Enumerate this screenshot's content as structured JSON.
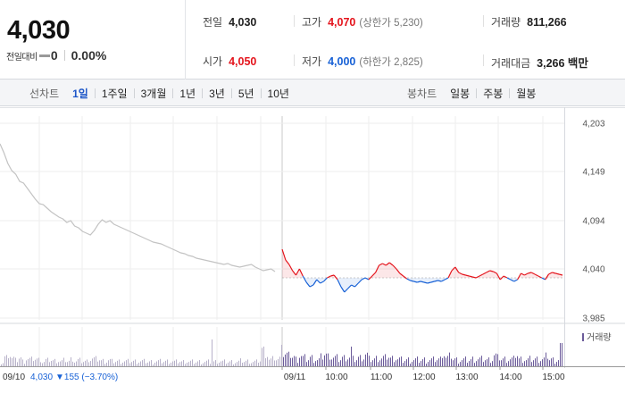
{
  "summary": {
    "current_price": "4,030",
    "change_label": "전일대비",
    "change_value": "0",
    "change_rate": "0.00%",
    "prev_close_label": "전일",
    "prev_close": "4,030",
    "open_label": "시가",
    "open": "4,050",
    "high_label": "고가",
    "high": "4,070",
    "upper_limit": "(상한가 5,230)",
    "low_label": "저가",
    "low": "4,000",
    "lower_limit": "(하한가 2,825)",
    "volume_label": "거래량",
    "volume": "811,266",
    "amount_label": "거래대금",
    "amount": "3,266 백만",
    "up_color": "#e4141c",
    "down_color": "#1761d6"
  },
  "tabs": {
    "line_title": "선차트",
    "line_items": [
      "1일",
      "1주일",
      "3개월",
      "1년",
      "3년",
      "5년",
      "10년"
    ],
    "active": "1일",
    "candle_title": "봉차트",
    "candle_items": [
      "일봉",
      "주봉",
      "월봉"
    ]
  },
  "chart_data": {
    "type": "line",
    "y_ticks": [
      "4,203",
      "4,149",
      "4,094",
      "4,040",
      "3,985"
    ],
    "y_tick_values": [
      4203,
      4149,
      4094,
      4040,
      3985
    ],
    "ylim": [
      3985,
      4203
    ],
    "baseline": 4030,
    "x_tick_labels": [
      "09/11",
      "10:00",
      "11:00",
      "12:00",
      "13:00",
      "14:00",
      "15:00"
    ],
    "prev_day": {
      "label": "09/10",
      "close": "4,030",
      "change_text": "▼155 (−3.70%)",
      "color": "#c3c3c3",
      "values": [
        4180,
        4170,
        4158,
        4150,
        4146,
        4138,
        4136,
        4130,
        4124,
        4118,
        4113,
        4112,
        4108,
        4104,
        4101,
        4098,
        4096,
        4092,
        4094,
        4088,
        4086,
        4082,
        4080,
        4078,
        4083,
        4090,
        4095,
        4092,
        4094,
        4090,
        4088,
        4086,
        4084,
        4082,
        4080,
        4078,
        4076,
        4074,
        4072,
        4070,
        4069,
        4068,
        4066,
        4064,
        4062,
        4060,
        4058,
        4057,
        4055,
        4054,
        4052,
        4051,
        4050,
        4049,
        4048,
        4047,
        4046,
        4045,
        4046,
        4044,
        4043,
        4042,
        4043,
        4044,
        4045,
        4042,
        4040,
        4038,
        4039,
        4040,
        4037
      ]
    },
    "today": {
      "values": [
        4062,
        4050,
        4045,
        4038,
        4033,
        4040,
        4032,
        4025,
        4020,
        4022,
        4028,
        4024,
        4026,
        4030,
        4032,
        4033,
        4028,
        4020,
        4014,
        4018,
        4022,
        4020,
        4024,
        4028,
        4030,
        4028,
        4032,
        4036,
        4044,
        4046,
        4044,
        4047,
        4044,
        4040,
        4035,
        4032,
        4029,
        4027,
        4026,
        4025,
        4026,
        4025,
        4024,
        4025,
        4026,
        4027,
        4026,
        4028,
        4030,
        4038,
        4042,
        4036,
        4034,
        4033,
        4032,
        4031,
        4030,
        4032,
        4034,
        4036,
        4038,
        4037,
        4035,
        4028,
        4032,
        4030,
        4028,
        4026,
        4028,
        4035,
        4033,
        4035,
        4036,
        4034,
        4032,
        4030,
        4028,
        4034,
        4036,
        4035,
        4034,
        4033
      ]
    },
    "volume_label": "거래량",
    "volume_color": "#6b5b9a"
  }
}
